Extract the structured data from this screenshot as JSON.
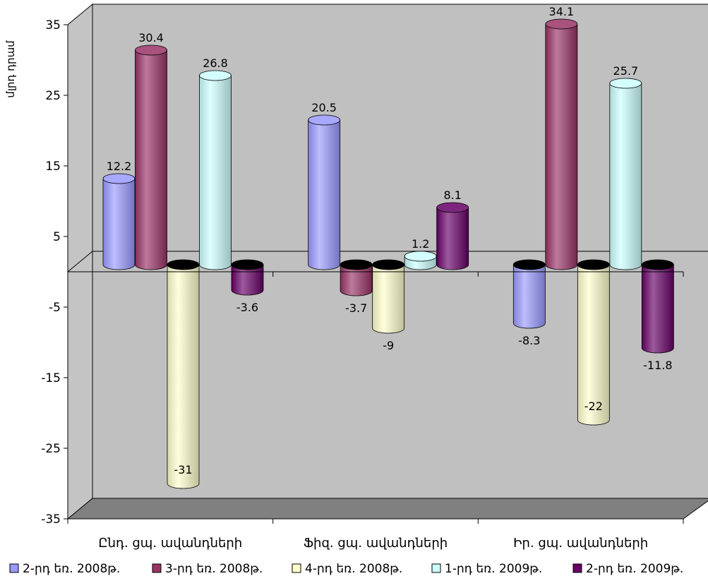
{
  "chart_data": {
    "type": "bar",
    "title": "",
    "xlabel": "",
    "ylabel": "մլրդ դրամ",
    "ylim": [
      -35,
      35
    ],
    "yticks": [
      35,
      25,
      15,
      5,
      -5,
      -15,
      -25,
      -35
    ],
    "grid": false,
    "legend_position": "bottom",
    "categories": [
      "Ընդ. ցպ. ավանդների",
      "Ֆիզ. ցպ. ավանդների",
      "Իր. ցպ. ավանդների"
    ],
    "series": [
      {
        "name": "2-րդ եռ. 2008թ.",
        "color": "#9999ff",
        "values": [
          12.2,
          20.5,
          -8.3
        ]
      },
      {
        "name": "3-րդ եռ. 2008թ.",
        "color": "#993366",
        "values": [
          30.4,
          -3.7,
          34.1
        ]
      },
      {
        "name": "4-րդ եռ. 2008թ.",
        "color": "#ffffcc",
        "values": [
          -31,
          -9,
          -22
        ]
      },
      {
        "name": "1-րդ եռ. 2009թ.",
        "color": "#ccffff",
        "values": [
          26.8,
          1.2,
          25.7
        ]
      },
      {
        "name": "2-րդ եռ. 2009թ.",
        "color": "#660066",
        "values": [
          -3.6,
          8.1,
          -11.8
        ]
      }
    ]
  }
}
